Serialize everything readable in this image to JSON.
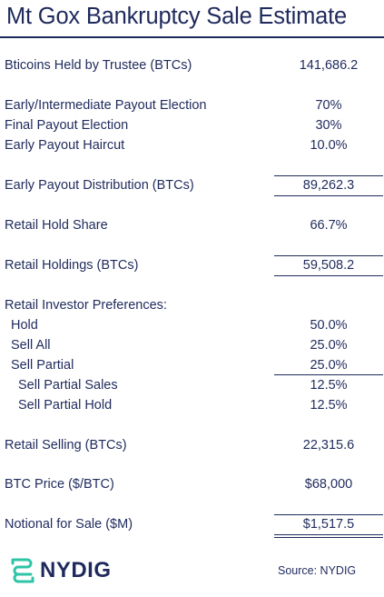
{
  "title": "Mt Gox Bankruptcy Sale Estimate",
  "rows": [
    {
      "label": "Bticoins Held by Trustee (BTCs)",
      "value": "141,686.2"
    },
    {
      "label": "Early/Intermediate  Payout Election",
      "value": "70%"
    },
    {
      "label": "Final Payout Election",
      "value": "30%"
    },
    {
      "label": "Early Payout Haircut",
      "value": "10.0%"
    },
    {
      "label": "Early Payout Distribution (BTCs)",
      "value": "89,262.3"
    },
    {
      "label": "Retail Hold Share",
      "value": "66.7%"
    },
    {
      "label": "Retail Holdings (BTCs)",
      "value": "59,508.2"
    },
    {
      "label": "Retail Investor Preferences:",
      "value": ""
    },
    {
      "label": "Hold",
      "value": "50.0%"
    },
    {
      "label": "Sell All",
      "value": "25.0%"
    },
    {
      "label": "Sell Partial",
      "value": "25.0%"
    },
    {
      "label": "Sell Partial Sales",
      "value": "12.5%"
    },
    {
      "label": "Sell Partial Hold",
      "value": "12.5%"
    },
    {
      "label": "Retail Selling (BTCs)",
      "value": "22,315.6"
    },
    {
      "label": "BTC Price ($/BTC)",
      "value": "$68,000"
    },
    {
      "label": "Notional for Sale ($M)",
      "value": "$1,517.5"
    }
  ],
  "footer": {
    "logo_text": "NYDIG",
    "source": "Source: NYDIG"
  },
  "colors": {
    "text": "#1f2a5c",
    "logo_accent": "#2ec4a6"
  }
}
